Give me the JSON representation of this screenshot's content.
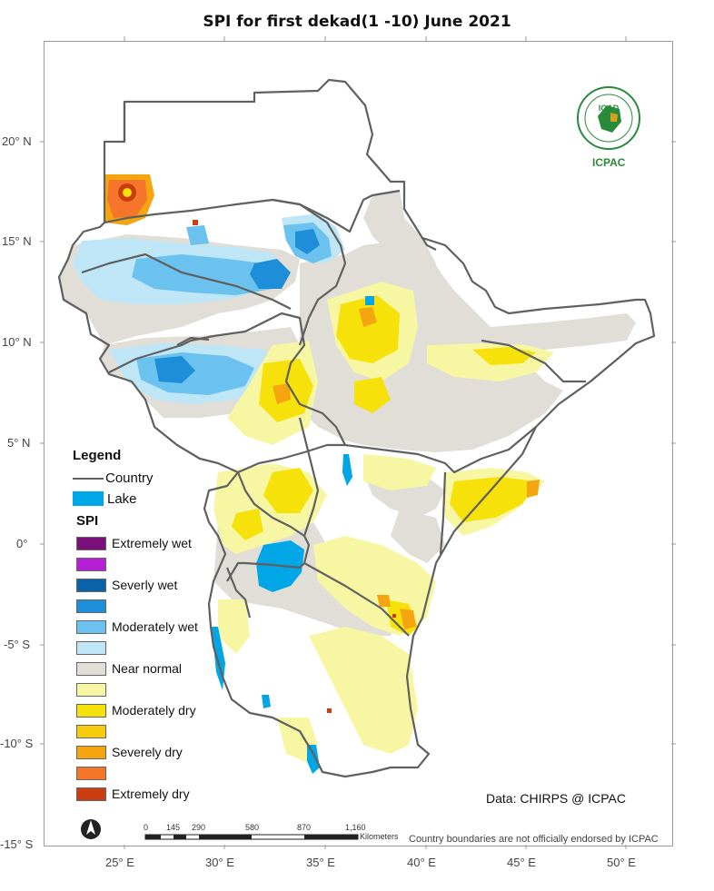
{
  "title": "SPI  for  first dekad(1 -10) June  2021",
  "lat_labels": [
    "20° N",
    "15° N",
    "10° N",
    "5° N",
    "0°",
    "-5° S",
    "-10° S",
    "-15° S"
  ],
  "lon_labels": [
    "25° E",
    "30° E",
    "35° E",
    "40° E",
    "45° E",
    "50° E"
  ],
  "legend": {
    "title": "Legend",
    "country_label": "Country",
    "lake_label": "Lake",
    "spi_title": "SPI",
    "classes": [
      {
        "label": "Extremely wet",
        "color": "#7b0f7b"
      },
      {
        "label": "",
        "color": "#b51fd6"
      },
      {
        "label": "Severly wet",
        "color": "#0a63a8"
      },
      {
        "label": "",
        "color": "#1f8ed8"
      },
      {
        "label": "Moderately wet",
        "color": "#6cc2ef"
      },
      {
        "label": "",
        "color": "#bfe6f7"
      },
      {
        "label": "Near normal",
        "color": "#e1ded7"
      },
      {
        "label": "",
        "color": "#f7f6a2"
      },
      {
        "label": "Moderately dry",
        "color": "#f6e10b"
      },
      {
        "label": "",
        "color": "#f5cd0e"
      },
      {
        "label": "Severely dry",
        "color": "#f5a50f"
      },
      {
        "label": "",
        "color": "#f5762a"
      },
      {
        "label": "Extremely dry",
        "color": "#c93d10"
      }
    ]
  },
  "data_source": "Data: CHIRPS @ ICPAC",
  "disclaimer": "Country boundaries are not officially endorsed by ICPAC",
  "scale_bar": {
    "ticks": [
      "0",
      "145",
      "290",
      "580",
      "870",
      "1,160"
    ],
    "unit": "Kilometers"
  },
  "logo": {
    "text": "ICPAC",
    "inner": "IGAD"
  },
  "colors": {
    "lake": "#00a6e6",
    "boundary": "#606060"
  }
}
